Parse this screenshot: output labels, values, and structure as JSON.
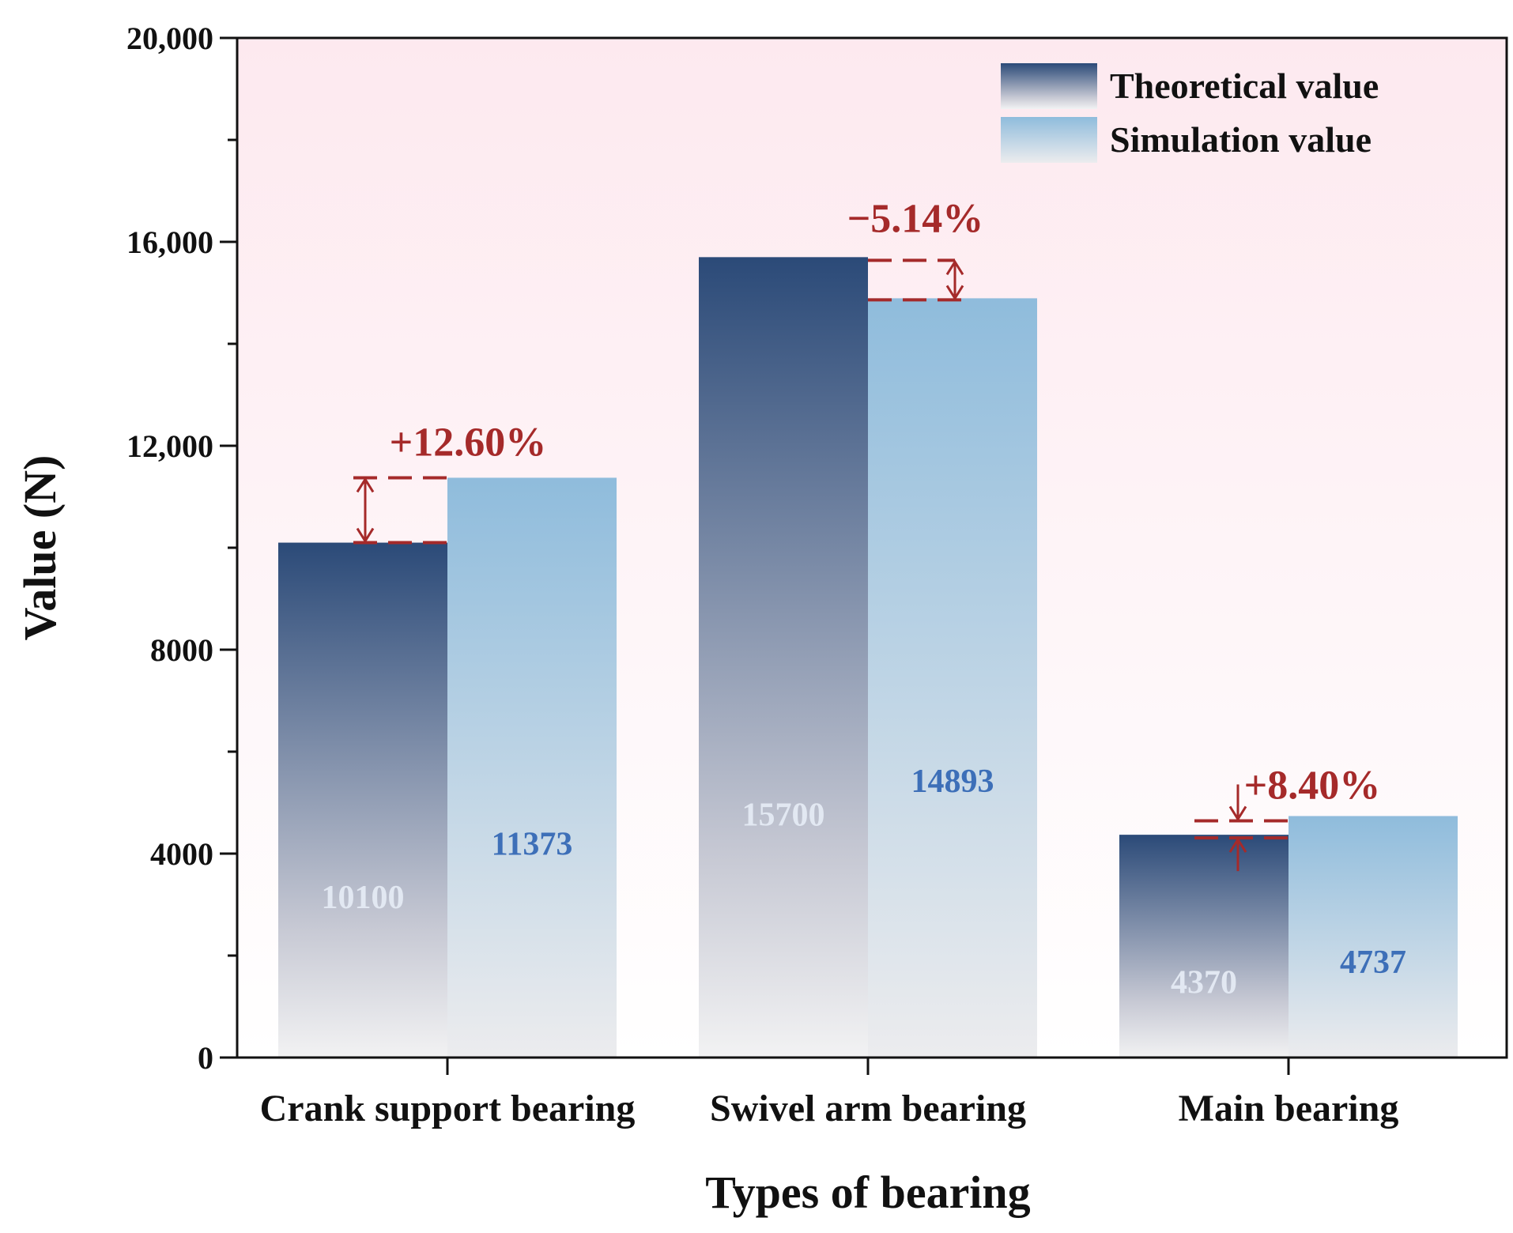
{
  "chart_data": {
    "type": "bar",
    "xlabel": "Types of bearing",
    "ylabel": "Value (N)",
    "ylim": [
      0,
      20000
    ],
    "yticks": [
      {
        "value": 0,
        "label": "0"
      },
      {
        "value": 4000,
        "label": "4000"
      },
      {
        "value": 8000,
        "label": "8000"
      },
      {
        "value": 12000,
        "label": "12,000"
      },
      {
        "value": 16000,
        "label": "16,000"
      },
      {
        "value": 20000,
        "label": "20,000"
      }
    ],
    "categories": [
      "Crank support bearing",
      "Swivel arm bearing",
      "Main bearing"
    ],
    "series": [
      {
        "name": "Theoretical value",
        "values": [
          10100,
          15700,
          4370
        ],
        "labels": [
          "10100",
          "15700",
          "4370"
        ]
      },
      {
        "name": "Simulation value",
        "values": [
          11373,
          14893,
          4737
        ],
        "labels": [
          "11373",
          "14893",
          "4737"
        ]
      }
    ],
    "differences": [
      "+12.60%",
      "−5.14%",
      "+8.40%"
    ],
    "legend_position": "top-right",
    "colors": {
      "theoretical_top": "#2b4a78",
      "theoretical_bottom": "#f2f2f3",
      "simulation_top": "#8fbcdc",
      "simulation_bottom": "#ececee",
      "theoretical_label": "#e2e8f2",
      "simulation_label": "#3d6fb8",
      "annotation": "#a52a2a",
      "background_top": "#fde9ef",
      "background_bottom": "#ffffff"
    }
  }
}
